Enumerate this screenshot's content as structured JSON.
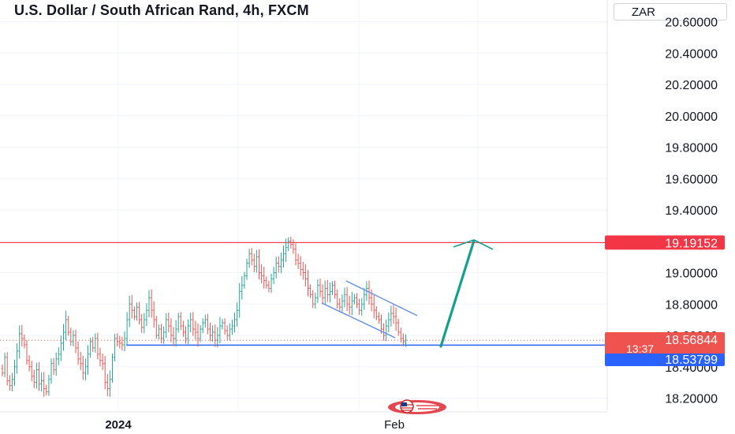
{
  "title": "U.S. Dollar / South African Rand, 4h, FXCM",
  "currency": "ZAR",
  "colors": {
    "up": "#26a69a",
    "down": "#ef5350",
    "resistance": "#f23645",
    "support": "#2962ff",
    "channel": "#5b8def",
    "arrow": "#159f8c",
    "grid": "#f0f3fa",
    "axis_text": "#131722"
  },
  "chart_data": {
    "type": "candlestick",
    "symbol": "USDZAR",
    "timeframe": "4h",
    "y_axis": {
      "range": [
        18.08,
        20.62
      ],
      "ticks": [
        "20.60000",
        "20.40000",
        "20.20000",
        "20.00000",
        "19.80000",
        "19.60000",
        "19.40000",
        "19.00000",
        "18.80000",
        "18.60000",
        "18.40000",
        "18.20000"
      ]
    },
    "x_axis": {
      "ticks": [
        "2024",
        "Feb"
      ]
    },
    "grid": true,
    "price_labels": [
      {
        "text": "19.19152",
        "kind": "resistance"
      },
      {
        "text": "18.56844",
        "kind": "last"
      },
      {
        "text": "13:37",
        "kind": "countdown"
      },
      {
        "text": "18.53799",
        "kind": "support"
      }
    ],
    "horizontal_levels": {
      "resistance": 19.19152,
      "support": 18.53799,
      "last": 18.56844
    },
    "closes": [
      18.36,
      18.46,
      18.31,
      18.28,
      18.32,
      18.4,
      18.5,
      18.61,
      18.58,
      18.54,
      18.44,
      18.4,
      18.34,
      18.3,
      18.38,
      18.29,
      18.31,
      18.26,
      18.24,
      18.32,
      18.42,
      18.38,
      18.45,
      18.48,
      18.55,
      18.62,
      18.7,
      18.62,
      18.56,
      18.6,
      18.52,
      18.45,
      18.42,
      18.36,
      18.4,
      18.48,
      18.56,
      18.52,
      18.58,
      18.48,
      18.44,
      18.42,
      18.3,
      18.26,
      18.32,
      18.46,
      18.58,
      18.56,
      18.55,
      18.54,
      18.58,
      18.7,
      18.8,
      18.76,
      18.72,
      18.78,
      18.7,
      18.65,
      18.7,
      18.76,
      18.84,
      18.76,
      18.7,
      18.6,
      18.64,
      18.58,
      18.62,
      18.7,
      18.66,
      18.6,
      18.58,
      18.64,
      18.72,
      18.66,
      18.62,
      18.58,
      18.66,
      18.7,
      18.64,
      18.62,
      18.58,
      18.64,
      18.68,
      18.7,
      18.64,
      18.6,
      18.62,
      18.57,
      18.6,
      18.66,
      18.68,
      18.63,
      18.6,
      18.64,
      18.66,
      18.7,
      18.76,
      18.88,
      18.92,
      18.98,
      19.06,
      19.12,
      19.08,
      19.04,
      19.1,
      19.0,
      18.98,
      18.95,
      18.92,
      18.9,
      18.96,
      19.0,
      19.06,
      19.04,
      19.08,
      19.12,
      19.16,
      19.2,
      19.18,
      19.15,
      19.08,
      19.06,
      19.02,
      19.0,
      18.96,
      18.9,
      18.86,
      18.8,
      18.84,
      18.92,
      18.88,
      18.84,
      18.9,
      18.86,
      18.88,
      18.92,
      18.86,
      18.8,
      18.78,
      18.82,
      18.86,
      18.8,
      18.78,
      18.82,
      18.84,
      18.8,
      18.76,
      18.8,
      18.86,
      18.9,
      18.84,
      18.8,
      18.76,
      18.72,
      18.7,
      18.64,
      18.6,
      18.66,
      18.7,
      18.74,
      18.72,
      18.68,
      18.62,
      18.58,
      18.56,
      18.57
    ]
  }
}
